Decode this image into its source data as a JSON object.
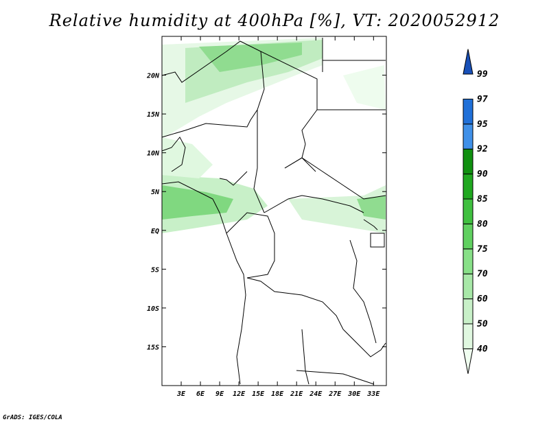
{
  "title": "Relative humidity at 400hPa [%], VT: 2020052912",
  "credit": "GrADS: IGES/COLA",
  "map": {
    "lon_range": [
      0,
      35
    ],
    "lat_range": [
      -20,
      25
    ],
    "x_ticks": [
      "3E",
      "6E",
      "9E",
      "12E",
      "15E",
      "18E",
      "21E",
      "24E",
      "27E",
      "30E",
      "33E"
    ],
    "x_tick_values": [
      3,
      6,
      9,
      12,
      15,
      18,
      21,
      24,
      27,
      30,
      33
    ],
    "y_ticks": [
      "20N",
      "15N",
      "10N",
      "5N",
      "EQ",
      "5S",
      "10S",
      "15S"
    ],
    "y_tick_values": [
      20,
      15,
      10,
      5,
      0,
      -5,
      -10,
      -15
    ]
  },
  "colorbar": {
    "labels": [
      "40",
      "50",
      "60",
      "70",
      "75",
      "80",
      "85",
      "90",
      "92",
      "95",
      "97",
      "99"
    ],
    "colors": [
      "#f0fff0",
      "#e0f8e0",
      "#c8f0c8",
      "#a8e8a8",
      "#88e088",
      "#60d060",
      "#40c040",
      "#20a820",
      "#109010",
      "#4090e8",
      "#2070d8",
      "#1850b8"
    ],
    "color_values": [
      "40-50",
      "50-60",
      "60-70",
      "70-75",
      "75-80",
      "80-85",
      "85-90",
      "90-92",
      "92-95",
      "95-97",
      "97-99",
      ">99"
    ]
  }
}
